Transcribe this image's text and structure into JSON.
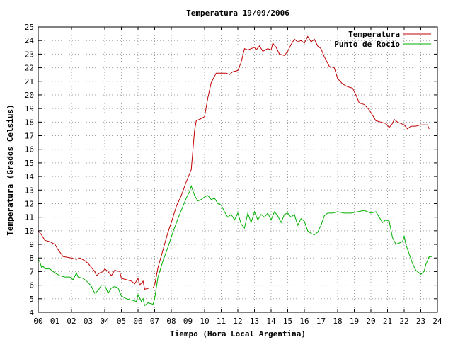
{
  "chart_data": {
    "type": "line",
    "title": "Temperatura 19/09/2006",
    "xlabel": "Tiempo (Hora Local Argentina)",
    "ylabel": "Temperatura (Grados Celsius)",
    "xlim": [
      0,
      24
    ],
    "ylim": [
      4,
      25
    ],
    "x_ticks": [
      "00",
      "01",
      "02",
      "03",
      "04",
      "05",
      "06",
      "07",
      "08",
      "09",
      "10",
      "11",
      "12",
      "13",
      "14",
      "15",
      "16",
      "17",
      "18",
      "19",
      "20",
      "21",
      "22",
      "23",
      "24"
    ],
    "y_ticks": [
      "4",
      "5",
      "6",
      "7",
      "8",
      "9",
      "10",
      "11",
      "12",
      "13",
      "14",
      "15",
      "16",
      "17",
      "18",
      "19",
      "20",
      "21",
      "22",
      "23",
      "24",
      "25"
    ],
    "grid": true,
    "legend_position": "top-right",
    "series": [
      {
        "name": "Temperatura",
        "color": "#c00000",
        "points": [
          [
            0.0,
            10.0
          ],
          [
            0.2,
            9.7
          ],
          [
            0.4,
            9.3
          ],
          [
            0.7,
            9.2
          ],
          [
            1.0,
            9.0
          ],
          [
            1.2,
            8.6
          ],
          [
            1.5,
            8.1
          ],
          [
            2.0,
            8.0
          ],
          [
            2.3,
            7.9
          ],
          [
            2.5,
            8.0
          ],
          [
            2.8,
            7.8
          ],
          [
            3.0,
            7.6
          ],
          [
            3.2,
            7.3
          ],
          [
            3.4,
            7.0
          ],
          [
            3.5,
            6.7
          ],
          [
            3.7,
            6.9
          ],
          [
            3.9,
            7.0
          ],
          [
            4.0,
            7.2
          ],
          [
            4.2,
            7.0
          ],
          [
            4.4,
            6.7
          ],
          [
            4.6,
            7.1
          ],
          [
            4.9,
            7.0
          ],
          [
            5.0,
            6.5
          ],
          [
            5.3,
            6.4
          ],
          [
            5.6,
            6.3
          ],
          [
            5.8,
            6.1
          ],
          [
            6.0,
            6.5
          ],
          [
            6.1,
            6.0
          ],
          [
            6.3,
            6.3
          ],
          [
            6.4,
            5.7
          ],
          [
            6.7,
            5.8
          ],
          [
            6.9,
            5.8
          ],
          [
            7.0,
            6.0
          ],
          [
            7.2,
            7.3
          ],
          [
            7.5,
            8.6
          ],
          [
            7.8,
            9.9
          ],
          [
            8.0,
            10.6
          ],
          [
            8.3,
            11.8
          ],
          [
            8.6,
            12.6
          ],
          [
            8.9,
            13.6
          ],
          [
            9.2,
            14.5
          ],
          [
            9.4,
            17.4
          ],
          [
            9.5,
            18.1
          ],
          [
            9.7,
            18.2
          ],
          [
            10.0,
            18.4
          ],
          [
            10.2,
            19.8
          ],
          [
            10.4,
            20.9
          ],
          [
            10.7,
            21.6
          ],
          [
            11.0,
            21.6
          ],
          [
            11.3,
            21.6
          ],
          [
            11.5,
            21.5
          ],
          [
            11.7,
            21.7
          ],
          [
            12.0,
            21.8
          ],
          [
            12.2,
            22.4
          ],
          [
            12.4,
            23.4
          ],
          [
            12.6,
            23.3
          ],
          [
            12.8,
            23.4
          ],
          [
            13.0,
            23.5
          ],
          [
            13.1,
            23.3
          ],
          [
            13.3,
            23.6
          ],
          [
            13.5,
            23.2
          ],
          [
            13.8,
            23.4
          ],
          [
            14.0,
            23.3
          ],
          [
            14.1,
            23.8
          ],
          [
            14.3,
            23.5
          ],
          [
            14.5,
            23.0
          ],
          [
            14.8,
            22.9
          ],
          [
            15.0,
            23.2
          ],
          [
            15.2,
            23.7
          ],
          [
            15.4,
            24.1
          ],
          [
            15.6,
            23.9
          ],
          [
            15.8,
            24.0
          ],
          [
            16.0,
            23.8
          ],
          [
            16.2,
            24.3
          ],
          [
            16.4,
            23.9
          ],
          [
            16.6,
            24.1
          ],
          [
            16.8,
            23.6
          ],
          [
            17.0,
            23.4
          ],
          [
            17.2,
            22.8
          ],
          [
            17.5,
            22.1
          ],
          [
            17.8,
            22.0
          ],
          [
            18.0,
            21.2
          ],
          [
            18.3,
            20.8
          ],
          [
            18.6,
            20.6
          ],
          [
            18.9,
            20.5
          ],
          [
            19.1,
            20.0
          ],
          [
            19.3,
            19.4
          ],
          [
            19.6,
            19.3
          ],
          [
            19.9,
            18.9
          ],
          [
            20.1,
            18.5
          ],
          [
            20.3,
            18.1
          ],
          [
            20.6,
            18.0
          ],
          [
            20.9,
            17.9
          ],
          [
            21.1,
            17.6
          ],
          [
            21.3,
            17.9
          ],
          [
            21.4,
            18.2
          ],
          [
            21.6,
            18.0
          ],
          [
            21.8,
            17.9
          ],
          [
            22.0,
            17.8
          ],
          [
            22.2,
            17.5
          ],
          [
            22.4,
            17.7
          ],
          [
            22.7,
            17.7
          ],
          [
            23.0,
            17.8
          ],
          [
            23.2,
            17.8
          ],
          [
            23.4,
            17.8
          ],
          [
            23.5,
            17.5
          ]
        ]
      },
      {
        "name": "Punto de Rocío",
        "color": "#00b000",
        "points": [
          [
            0.0,
            7.9
          ],
          [
            0.1,
            7.7
          ],
          [
            0.2,
            7.3
          ],
          [
            0.3,
            7.4
          ],
          [
            0.4,
            7.2
          ],
          [
            0.5,
            7.2
          ],
          [
            0.7,
            7.2
          ],
          [
            1.0,
            6.9
          ],
          [
            1.3,
            6.7
          ],
          [
            1.6,
            6.6
          ],
          [
            1.9,
            6.6
          ],
          [
            2.1,
            6.4
          ],
          [
            2.3,
            6.9
          ],
          [
            2.4,
            6.6
          ],
          [
            2.7,
            6.5
          ],
          [
            3.0,
            6.2
          ],
          [
            3.2,
            5.9
          ],
          [
            3.4,
            5.4
          ],
          [
            3.6,
            5.6
          ],
          [
            3.8,
            6.0
          ],
          [
            4.0,
            6.0
          ],
          [
            4.2,
            5.4
          ],
          [
            4.4,
            5.8
          ],
          [
            4.6,
            5.9
          ],
          [
            4.8,
            5.8
          ],
          [
            5.0,
            5.2
          ],
          [
            5.3,
            5.0
          ],
          [
            5.6,
            4.9
          ],
          [
            5.9,
            4.8
          ],
          [
            6.0,
            5.3
          ],
          [
            6.2,
            4.8
          ],
          [
            6.3,
            5.0
          ],
          [
            6.4,
            4.5
          ],
          [
            6.6,
            4.7
          ],
          [
            6.9,
            4.6
          ],
          [
            7.0,
            5.0
          ],
          [
            7.2,
            6.6
          ],
          [
            7.5,
            7.8
          ],
          [
            7.8,
            8.8
          ],
          [
            8.1,
            9.9
          ],
          [
            8.4,
            10.9
          ],
          [
            8.7,
            11.8
          ],
          [
            8.9,
            12.4
          ],
          [
            9.1,
            12.9
          ],
          [
            9.2,
            13.3
          ],
          [
            9.4,
            12.6
          ],
          [
            9.6,
            12.2
          ],
          [
            9.8,
            12.3
          ],
          [
            10.0,
            12.5
          ],
          [
            10.2,
            12.6
          ],
          [
            10.4,
            12.3
          ],
          [
            10.6,
            12.4
          ],
          [
            10.8,
            12.0
          ],
          [
            11.0,
            11.9
          ],
          [
            11.2,
            11.4
          ],
          [
            11.4,
            11.0
          ],
          [
            11.6,
            11.2
          ],
          [
            11.8,
            10.8
          ],
          [
            12.0,
            11.3
          ],
          [
            12.2,
            10.5
          ],
          [
            12.4,
            10.2
          ],
          [
            12.6,
            11.3
          ],
          [
            12.8,
            10.6
          ],
          [
            13.0,
            11.4
          ],
          [
            13.2,
            10.8
          ],
          [
            13.4,
            11.2
          ],
          [
            13.6,
            11.0
          ],
          [
            13.8,
            11.3
          ],
          [
            14.0,
            10.8
          ],
          [
            14.2,
            11.4
          ],
          [
            14.4,
            11.1
          ],
          [
            14.6,
            10.6
          ],
          [
            14.8,
            11.2
          ],
          [
            15.0,
            11.3
          ],
          [
            15.2,
            11.0
          ],
          [
            15.4,
            11.2
          ],
          [
            15.6,
            10.4
          ],
          [
            15.8,
            10.9
          ],
          [
            16.0,
            10.7
          ],
          [
            16.2,
            10.0
          ],
          [
            16.4,
            9.8
          ],
          [
            16.6,
            9.7
          ],
          [
            16.8,
            9.9
          ],
          [
            17.0,
            10.4
          ],
          [
            17.2,
            11.1
          ],
          [
            17.4,
            11.3
          ],
          [
            17.7,
            11.3
          ],
          [
            18.0,
            11.4
          ],
          [
            18.4,
            11.3
          ],
          [
            18.8,
            11.3
          ],
          [
            19.2,
            11.4
          ],
          [
            19.6,
            11.5
          ],
          [
            20.0,
            11.3
          ],
          [
            20.3,
            11.4
          ],
          [
            20.5,
            11.0
          ],
          [
            20.7,
            10.6
          ],
          [
            20.9,
            10.8
          ],
          [
            21.1,
            10.7
          ],
          [
            21.3,
            9.5
          ],
          [
            21.5,
            9.0
          ],
          [
            21.7,
            9.1
          ],
          [
            21.9,
            9.2
          ],
          [
            22.0,
            9.6
          ],
          [
            22.1,
            9.0
          ],
          [
            22.3,
            8.3
          ],
          [
            22.5,
            7.6
          ],
          [
            22.7,
            7.1
          ],
          [
            22.9,
            6.9
          ],
          [
            23.0,
            6.8
          ],
          [
            23.2,
            7.0
          ],
          [
            23.3,
            7.5
          ],
          [
            23.5,
            8.1
          ],
          [
            23.7,
            8.1
          ]
        ]
      }
    ]
  }
}
